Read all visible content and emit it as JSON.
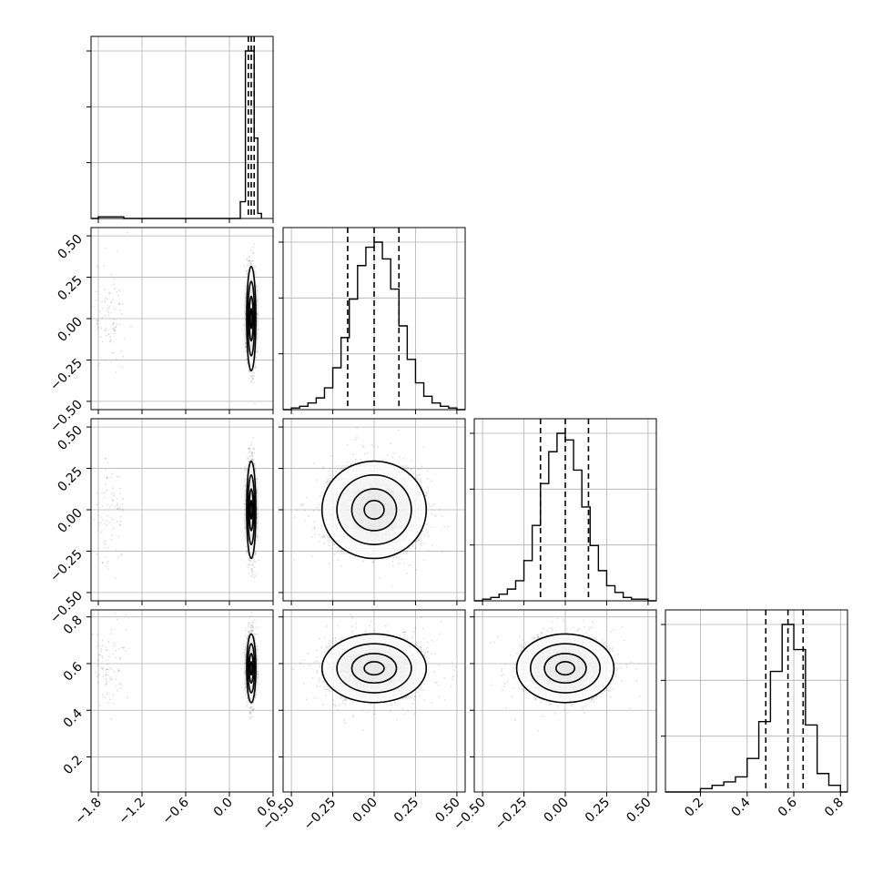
{
  "chart_data": {
    "type": "corner",
    "title": "",
    "grid": true,
    "cross_pairs": [
      [
        0,
        1
      ],
      [
        0,
        2
      ],
      [
        0,
        3
      ],
      [
        1,
        2
      ],
      [
        1,
        3
      ],
      [
        2,
        3
      ]
    ],
    "params": [
      {
        "range": [
          -1.9,
          0.6
        ],
        "ticks": [
          "−1.8",
          "−1.2",
          "−0.6",
          "0.0",
          "0.6"
        ],
        "tick_values": [
          -1.8,
          -1.2,
          -0.6,
          0.0,
          0.6
        ],
        "quantiles": [
          0.26,
          0.3,
          0.34
        ],
        "median": 0.3,
        "sigma": 0.03,
        "hist_y_ticks": [
          0.3,
          0.6,
          0.9
        ],
        "hist": {
          "bin_edges": [
            -1.9,
            -1.8,
            -1.75,
            -1.7,
            -1.65,
            -1.6,
            -1.55,
            -1.5,
            -1.45,
            0.15,
            0.22,
            0.34,
            0.39,
            0.44
          ],
          "counts": [
            0.0,
            0.01,
            0.01,
            0.01,
            0.01,
            0.01,
            0.01,
            0.01,
            0.0,
            0.1,
            1.0,
            0.48,
            0.03
          ]
        }
      },
      {
        "range": [
          -0.55,
          0.55
        ],
        "ticks": [
          "−0.50",
          "−0.25",
          "0.00",
          "0.25",
          "0.50"
        ],
        "tick_values": [
          -0.5,
          -0.25,
          0.0,
          0.25,
          0.5
        ],
        "quantiles": [
          -0.16,
          0.0,
          0.15
        ],
        "median": 0.0,
        "sigma": 0.15,
        "hist_y_ticks": [
          0.3,
          0.6,
          0.9
        ],
        "hist": {
          "bin_edges": [
            -0.55,
            -0.5,
            -0.45,
            -0.4,
            -0.35,
            -0.3,
            -0.25,
            -0.2,
            -0.15,
            -0.1,
            -0.05,
            0.0,
            0.05,
            0.1,
            0.15,
            0.2,
            0.25,
            0.3,
            0.35,
            0.4,
            0.45,
            0.5,
            0.55
          ],
          "counts": [
            0.0,
            0.01,
            0.02,
            0.04,
            0.07,
            0.13,
            0.25,
            0.43,
            0.66,
            0.86,
            0.97,
            1.0,
            0.9,
            0.72,
            0.5,
            0.3,
            0.16,
            0.08,
            0.04,
            0.02,
            0.01,
            0.0
          ]
        }
      },
      {
        "range": [
          -0.55,
          0.55
        ],
        "ticks": [
          "−0.50",
          "−0.25",
          "0.00",
          "0.25",
          "0.50"
        ],
        "tick_values": [
          -0.5,
          -0.25,
          0.0,
          0.25,
          0.5
        ],
        "quantiles": [
          -0.15,
          0.0,
          0.14
        ],
        "median": 0.0,
        "sigma": 0.14,
        "hist_y_ticks": [
          0.3,
          0.6,
          0.9
        ],
        "hist": {
          "bin_edges": [
            -0.55,
            -0.5,
            -0.45,
            -0.4,
            -0.35,
            -0.3,
            -0.25,
            -0.2,
            -0.15,
            -0.1,
            -0.05,
            0.0,
            0.05,
            0.1,
            0.15,
            0.2,
            0.25,
            0.3,
            0.35,
            0.4,
            0.45,
            0.5,
            0.55
          ],
          "counts": [
            0.0,
            0.01,
            0.02,
            0.04,
            0.07,
            0.12,
            0.24,
            0.45,
            0.7,
            0.89,
            1.0,
            0.96,
            0.78,
            0.56,
            0.33,
            0.18,
            0.09,
            0.05,
            0.02,
            0.01,
            0.01,
            0.0
          ]
        }
      },
      {
        "range": [
          0.05,
          0.83
        ],
        "ticks": [
          "0.2",
          "0.4",
          "0.6",
          "0.8"
        ],
        "tick_values": [
          0.2,
          0.4,
          0.6,
          0.8
        ],
        "quantiles": [
          0.48,
          0.575,
          0.64
        ],
        "median": 0.58,
        "sigma": 0.07,
        "hist_y_ticks": [
          0.3,
          0.6,
          0.9
        ],
        "hist": {
          "bin_edges": [
            0.05,
            0.2,
            0.25,
            0.3,
            0.35,
            0.4,
            0.45,
            0.5,
            0.55,
            0.6,
            0.65,
            0.7,
            0.75,
            0.8,
            0.83
          ],
          "counts": [
            0.0,
            0.02,
            0.04,
            0.06,
            0.09,
            0.2,
            0.42,
            0.72,
            1.0,
            0.85,
            0.4,
            0.11,
            0.04,
            0.0
          ]
        }
      }
    ]
  }
}
